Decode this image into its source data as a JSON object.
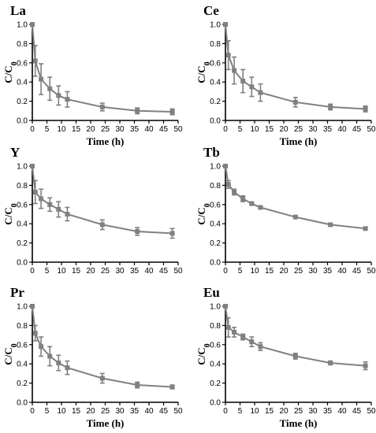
{
  "chart_data": [
    {
      "type": "line",
      "title": "La",
      "xlabel": "Time (h)",
      "ylabel": "C/C0",
      "xlim": [
        0,
        50
      ],
      "ylim": [
        0,
        1.0
      ],
      "xticks": [
        "0",
        "5",
        "10",
        "15",
        "20",
        "25",
        "30",
        "35",
        "40",
        "45",
        "50"
      ],
      "yticks": [
        "0.0",
        "0.2",
        "0.4",
        "0.6",
        "0.8",
        "1.0"
      ],
      "grid": false,
      "x": [
        0,
        1,
        3,
        6,
        9,
        12,
        24,
        36,
        48
      ],
      "values": [
        1.0,
        0.62,
        0.43,
        0.33,
        0.26,
        0.22,
        0.14,
        0.1,
        0.09
      ],
      "errors": [
        0.0,
        0.16,
        0.16,
        0.12,
        0.1,
        0.08,
        0.04,
        0.03,
        0.03
      ]
    },
    {
      "type": "line",
      "title": "Ce",
      "xlabel": "Time (h)",
      "ylabel": "C/C0",
      "xlim": [
        0,
        50
      ],
      "ylim": [
        0,
        1.0
      ],
      "xticks": [
        "0",
        "5",
        "10",
        "15",
        "20",
        "25",
        "30",
        "35",
        "40",
        "45",
        "50"
      ],
      "yticks": [
        "0.0",
        "0.2",
        "0.4",
        "0.6",
        "0.8",
        "1.0"
      ],
      "grid": false,
      "x": [
        0,
        1,
        3,
        6,
        9,
        12,
        24,
        36,
        48
      ],
      "values": [
        1.0,
        0.68,
        0.52,
        0.41,
        0.35,
        0.29,
        0.19,
        0.14,
        0.12
      ],
      "errors": [
        0.0,
        0.15,
        0.14,
        0.12,
        0.1,
        0.09,
        0.05,
        0.03,
        0.03
      ]
    },
    {
      "type": "line",
      "title": "Y",
      "xlabel": "",
      "ylabel": "C/C0",
      "xlim": [
        0,
        50
      ],
      "ylim": [
        0,
        1.0
      ],
      "xticks": [
        "0",
        "5",
        "10",
        "15",
        "20",
        "25",
        "30",
        "35",
        "40",
        "45",
        "50"
      ],
      "yticks": [
        "0.0",
        "0.2",
        "0.4",
        "0.6",
        "0.8",
        "1.0"
      ],
      "grid": false,
      "x": [
        0,
        1,
        3,
        6,
        9,
        12,
        24,
        36,
        48
      ],
      "values": [
        1.0,
        0.73,
        0.66,
        0.6,
        0.55,
        0.5,
        0.39,
        0.32,
        0.3
      ],
      "errors": [
        0.0,
        0.12,
        0.1,
        0.07,
        0.08,
        0.07,
        0.05,
        0.04,
        0.05
      ]
    },
    {
      "type": "line",
      "title": "Tb",
      "xlabel": "",
      "ylabel": "C/C0",
      "xlim": [
        0,
        50
      ],
      "ylim": [
        0,
        1.0
      ],
      "xticks": [
        "0",
        "5",
        "10",
        "15",
        "20",
        "25",
        "30",
        "35",
        "40",
        "45",
        "50"
      ],
      "yticks": [
        "0.0",
        "0.2",
        "0.4",
        "0.6",
        "0.8",
        "1.0"
      ],
      "grid": false,
      "x": [
        0,
        1,
        3,
        6,
        9,
        12,
        24,
        36,
        48
      ],
      "values": [
        1.0,
        0.81,
        0.73,
        0.66,
        0.61,
        0.57,
        0.47,
        0.39,
        0.35
      ],
      "errors": [
        0.0,
        0.04,
        0.03,
        0.03,
        0.01,
        0.01,
        0.01,
        0.01,
        0.01
      ]
    },
    {
      "type": "line",
      "title": "Pr",
      "xlabel": "Time (h)",
      "ylabel": "C/C0",
      "xlim": [
        0,
        50
      ],
      "ylim": [
        0,
        1.0
      ],
      "xticks": [
        "0",
        "5",
        "10",
        "15",
        "20",
        "25",
        "30",
        "35",
        "40",
        "45",
        "50"
      ],
      "yticks": [
        "0.0",
        "0.2",
        "0.4",
        "0.6",
        "0.8",
        "1.0"
      ],
      "grid": false,
      "x": [
        0,
        1,
        3,
        6,
        9,
        12,
        24,
        36,
        48
      ],
      "values": [
        1.0,
        0.72,
        0.58,
        0.48,
        0.41,
        0.36,
        0.25,
        0.18,
        0.16
      ],
      "errors": [
        0.0,
        0.08,
        0.1,
        0.1,
        0.08,
        0.07,
        0.05,
        0.03,
        0.02
      ]
    },
    {
      "type": "line",
      "title": "Eu",
      "xlabel": "Time (h)",
      "ylabel": "C/C0",
      "xlim": [
        0,
        50
      ],
      "ylim": [
        0,
        1.0
      ],
      "xticks": [
        "0",
        "5",
        "10",
        "15",
        "20",
        "25",
        "30",
        "35",
        "40",
        "45",
        "50"
      ],
      "yticks": [
        "0.0",
        "0.2",
        "0.4",
        "0.6",
        "0.8",
        "1.0"
      ],
      "grid": false,
      "x": [
        0,
        1,
        3,
        6,
        9,
        12,
        24,
        36,
        48
      ],
      "values": [
        1.0,
        0.78,
        0.73,
        0.68,
        0.63,
        0.58,
        0.48,
        0.41,
        0.38
      ],
      "errors": [
        0.0,
        0.1,
        0.05,
        0.03,
        0.05,
        0.04,
        0.03,
        0.02,
        0.04
      ]
    }
  ],
  "colors": {
    "series": "#808080",
    "axis": "#000000"
  }
}
